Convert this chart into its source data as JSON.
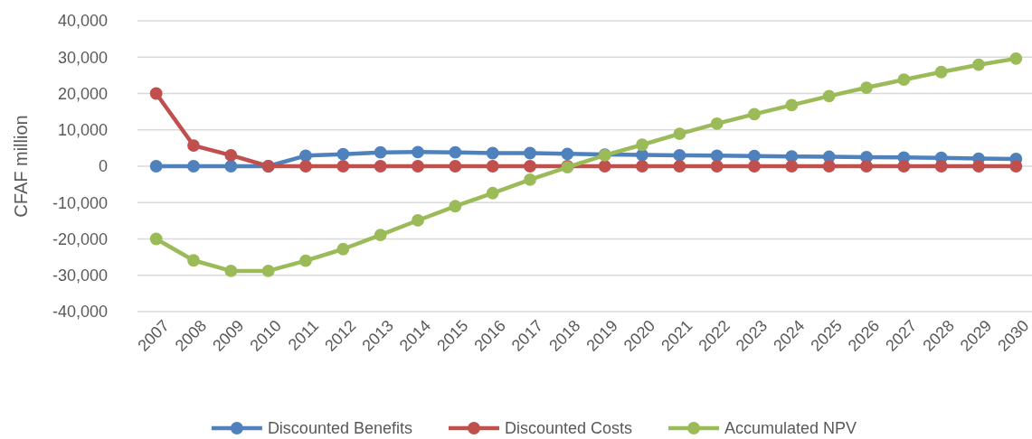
{
  "chart_data": {
    "type": "line",
    "ylabel": "CFAF million",
    "categories": [
      "2007",
      "2008",
      "2009",
      "2010",
      "2011",
      "2012",
      "2013",
      "2014",
      "2015",
      "2016",
      "2017",
      "2018",
      "2019",
      "2020",
      "2021",
      "2022",
      "2023",
      "2024",
      "2025",
      "2026",
      "2027",
      "2028",
      "2029",
      "2030"
    ],
    "series": [
      {
        "name": "Discounted Benefits",
        "color": "#4f81bd",
        "values": [
          0,
          0,
          0,
          0,
          2900,
          3300,
          3800,
          3900,
          3800,
          3600,
          3600,
          3400,
          3200,
          3100,
          3000,
          2900,
          2800,
          2700,
          2600,
          2500,
          2400,
          2300,
          2100,
          2000
        ]
      },
      {
        "name": "Discounted Costs",
        "color": "#c0504d",
        "values": [
          20000,
          5700,
          3000,
          0,
          0,
          0,
          0,
          0,
          0,
          0,
          0,
          0,
          0,
          0,
          0,
          0,
          0,
          0,
          0,
          0,
          0,
          0,
          0,
          0
        ]
      },
      {
        "name": "Accumulated NPV",
        "color": "#9bbb59",
        "values": [
          -20000,
          -25900,
          -28800,
          -28800,
          -26000,
          -22800,
          -18900,
          -14900,
          -11000,
          -7400,
          -3700,
          -300,
          3000,
          5900,
          8900,
          11700,
          14300,
          16800,
          19300,
          21600,
          23800,
          25900,
          27900,
          29600
        ]
      }
    ],
    "ylim": [
      -40000,
      40000
    ],
    "yticks": [
      {
        "value": -40000,
        "label": "-40,000"
      },
      {
        "value": -30000,
        "label": "-30,000"
      },
      {
        "value": -20000,
        "label": "-20,000"
      },
      {
        "value": -10000,
        "label": "-10,000"
      },
      {
        "value": 0,
        "label": "0"
      },
      {
        "value": 10000,
        "label": "10,000"
      },
      {
        "value": 20000,
        "label": "20,000"
      },
      {
        "value": 30000,
        "label": "30,000"
      },
      {
        "value": 40000,
        "label": "40,000"
      }
    ],
    "grid": "y",
    "legend": "bottom",
    "marker": "circle",
    "line_style": "solid"
  }
}
